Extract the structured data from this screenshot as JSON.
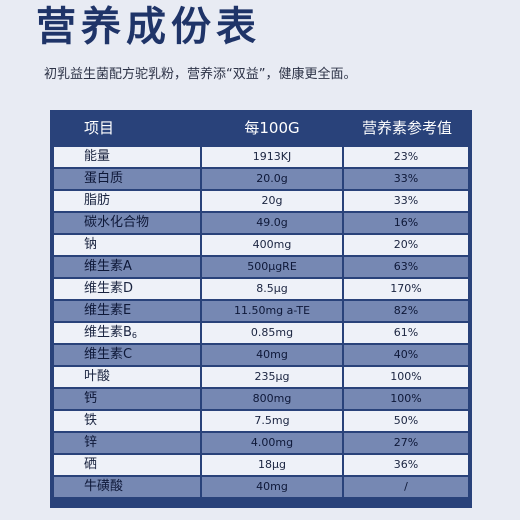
{
  "title": "营养成份表",
  "subtitle": "初乳益生菌配方驼乳粉，营养添“双益”，健康更全面。",
  "table": {
    "headers": {
      "name": "项目",
      "per": "每100G",
      "ref": "营养素参考值"
    },
    "rows": [
      {
        "name": "能量",
        "per": "1913KJ",
        "ref": "23%"
      },
      {
        "name": "蛋白质",
        "per": "20.0g",
        "ref": "33%"
      },
      {
        "name": "脂肪",
        "per": "20g",
        "ref": "33%"
      },
      {
        "name": "碳水化合物",
        "per": "49.0g",
        "ref": "16%"
      },
      {
        "name": "钠",
        "per": "400mg",
        "ref": "20%"
      },
      {
        "name": "维生素A",
        "per": "500μgRE",
        "ref": "63%"
      },
      {
        "name": "维生素D",
        "per": "8.5μg",
        "ref": "170%"
      },
      {
        "name": "维生素E",
        "per": "11.50mg a-TE",
        "ref": "82%"
      },
      {
        "name": "维生素B",
        "name_sub": "6",
        "per": "0.85mg",
        "ref": "61%"
      },
      {
        "name": "维生素C",
        "per": "40mg",
        "ref": "40%"
      },
      {
        "name": "叶酸",
        "per": "235μg",
        "ref": "100%"
      },
      {
        "name": "钙",
        "per": "800mg",
        "ref": "100%"
      },
      {
        "name": "铁",
        "per": "7.5mg",
        "ref": "50%"
      },
      {
        "name": "锌",
        "per": "4.00mg",
        "ref": "27%"
      },
      {
        "name": "硒",
        "per": "18μg",
        "ref": "36%"
      },
      {
        "name": "牛磺酸",
        "per": "40mg",
        "ref": "/"
      }
    ]
  }
}
